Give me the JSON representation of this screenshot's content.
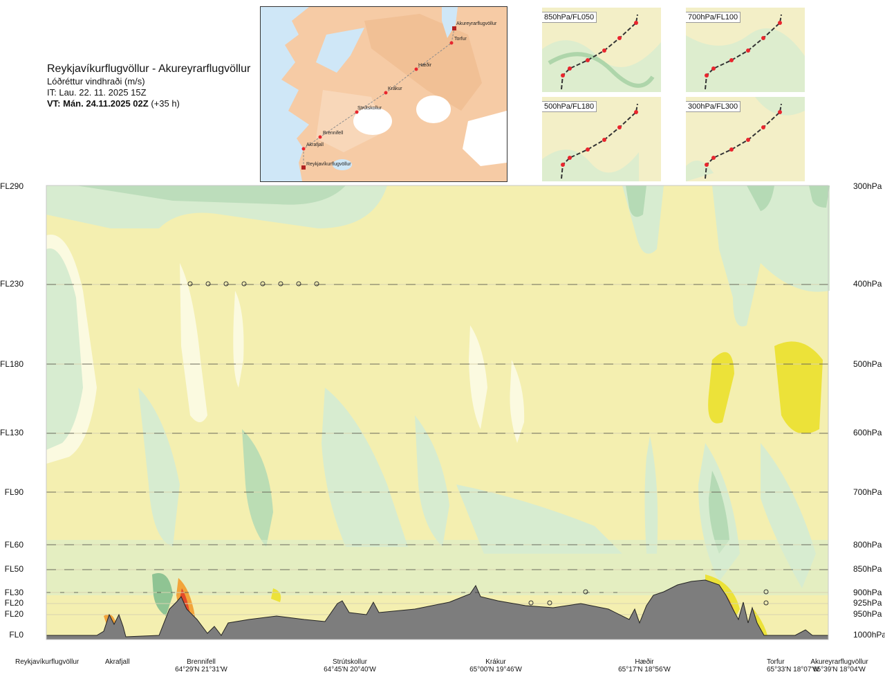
{
  "title": {
    "route": "Reykjavíkurflugvöllur - Akureyrarflugvöllur",
    "parameter": "Lóðréttur vindhraði (m/s)",
    "issue_time": "IT: Lau. 22. 11. 2025 15Z",
    "valid_time_bold": "VT: Mán. 24.11.2025 02Z",
    "valid_time_offset": "(+35 h)"
  },
  "route_map": {
    "waypoints": [
      {
        "name": "Akureyrarflugvöllur",
        "type": "airport"
      },
      {
        "name": "Torfur",
        "type": "point"
      },
      {
        "name": "Hæðir",
        "type": "point"
      },
      {
        "name": "Krákur",
        "type": "point"
      },
      {
        "name": "Strútskollur",
        "type": "point"
      },
      {
        "name": "Brennifell",
        "type": "point"
      },
      {
        "name": "Akrafjall",
        "type": "point"
      },
      {
        "name": "Reykjavíkurflugvöllur",
        "type": "airport"
      }
    ],
    "colors": {
      "sea": "#cfe7f7",
      "land": "#f6cba5",
      "ice": "#ffffff",
      "route": "#c0392b"
    }
  },
  "thumbnails": [
    {
      "label": "850hPa/FL050"
    },
    {
      "label": "700hPa/FL100"
    },
    {
      "label": "500hPa/FL180"
    },
    {
      "label": "300hPa/FL300"
    }
  ],
  "levels_left": [
    "FL290",
    "FL230",
    "FL180",
    "FL130",
    "FL90",
    "FL60",
    "FL50",
    "FL30",
    "FL20",
    "FL20",
    "FL0"
  ],
  "levels_right": [
    "300hPa",
    "400hPa",
    "500hPa",
    "600hPa",
    "700hPa",
    "800hPa",
    "850hPa",
    "900hPa",
    "925hPa",
    "950hPa",
    "1000hPa"
  ],
  "stations": [
    {
      "name": "Reykjavíkurflugvöllur",
      "coord": ""
    },
    {
      "name": "Akrafjall",
      "coord": ""
    },
    {
      "name": "Brennifell",
      "coord": "64°29'N 21°31'W"
    },
    {
      "name": "Strútskollur",
      "coord": "64°45'N 20°40'W"
    },
    {
      "name": "Krákur",
      "coord": "65°00'N 19°46'W"
    },
    {
      "name": "Hæðir",
      "coord": "65°17'N 18°56'W"
    },
    {
      "name": "Torfur",
      "coord": "65°33'N 18°07'W"
    },
    {
      "name": "Akureyrarflugvöllur",
      "coord": "65°39'N 18°04'W"
    }
  ],
  "palette": {
    "base": "#f4efb0",
    "light_green": "#d7ecd0",
    "mid_green": "#b5dab5",
    "dark_green": "#8fc493",
    "pale": "#fbfae0",
    "yellow": "#ece239",
    "orange": "#f2a43a",
    "red": "#e24b2a",
    "terrain": "#7d7d7d"
  }
}
